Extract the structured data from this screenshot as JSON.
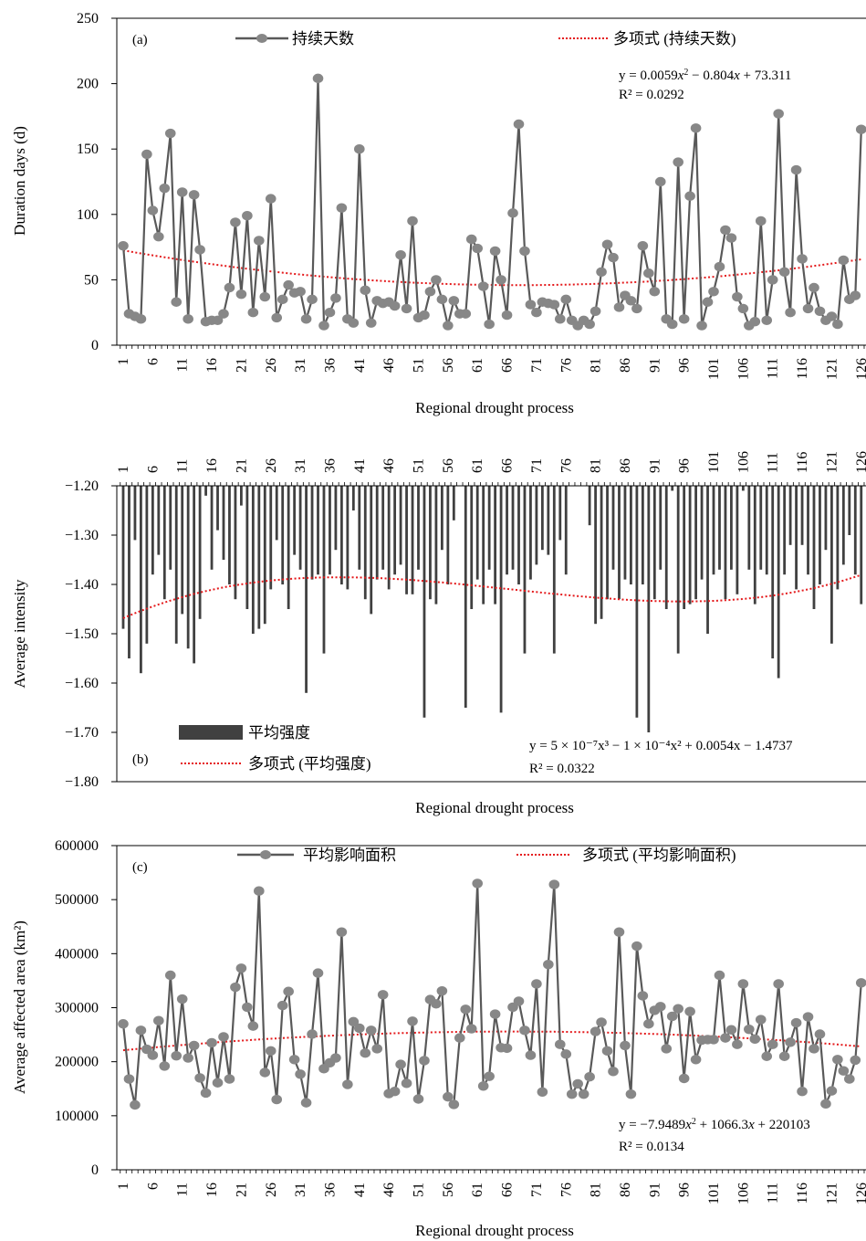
{
  "chart_data": [
    {
      "id": "a",
      "type": "line",
      "panel_label": "(a)",
      "xlabel": "Regional drought process",
      "ylabel": "Duration days (d)",
      "ylim": [
        0,
        250
      ],
      "yticks": [
        0,
        50,
        100,
        150,
        200,
        250
      ],
      "ytick_labels": [
        "0",
        "50",
        "100",
        "150",
        "200",
        "250"
      ],
      "x_first": 1,
      "x_label_every": 5,
      "grid": false,
      "legend_position": "top",
      "series": [
        {
          "name": "持续天数",
          "color": "#595959",
          "values": [
            76,
            24,
            22,
            20,
            146,
            103,
            83,
            120,
            162,
            33,
            117,
            20,
            115,
            73,
            18,
            19,
            19,
            24,
            44,
            94,
            39,
            99,
            25,
            80,
            37,
            112,
            21,
            35,
            46,
            40,
            41,
            20,
            35,
            204,
            15,
            25,
            36,
            105,
            20,
            17,
            150,
            42,
            17,
            34,
            32,
            33,
            30,
            69,
            28,
            95,
            21,
            23,
            41,
            50,
            35,
            15,
            34,
            24,
            24,
            81,
            74,
            45,
            16,
            72,
            50,
            23,
            101,
            169,
            72,
            31,
            25,
            33,
            32,
            31,
            20,
            35,
            19,
            15,
            19,
            16,
            26,
            56,
            77,
            67,
            29,
            38,
            34,
            28,
            76,
            55,
            41,
            125,
            20,
            16,
            140,
            20,
            114,
            166,
            15,
            33,
            41,
            60,
            88,
            82,
            37,
            28,
            15,
            18,
            95,
            19,
            50,
            177,
            56,
            25,
            134,
            66,
            28,
            44,
            26,
            19,
            22,
            16,
            65,
            35,
            38,
            165
          ]
        }
      ],
      "trend": {
        "name": "多项式 (持续天数)",
        "color": "#e41a1c",
        "equation_y": "y = 0.0059",
        "equation_x2": "x",
        "equation_rest": " − 0.804",
        "equation_x": "x",
        "equation_tail": " + 73.311",
        "r2": "R² = 0.0292",
        "coefficients": [
          0.0059,
          -0.804,
          73.311
        ]
      }
    },
    {
      "id": "b",
      "type": "bar",
      "panel_label": "(b)",
      "xlabel": "Regional drought process",
      "ylabel": "Average intensity",
      "ylim": [
        -1.8,
        -1.2
      ],
      "yticks": [
        -1.8,
        -1.7,
        -1.6,
        -1.5,
        -1.4,
        -1.3,
        -1.2
      ],
      "ytick_labels": [
        "−1.80",
        "−1.70",
        "−1.60",
        "−1.50",
        "−1.40",
        "−1.30",
        "−1.20"
      ],
      "x_first": 1,
      "x_label_every": 5,
      "grid": false,
      "legend_position": "bottom-left",
      "series": [
        {
          "name": "平均强度",
          "color": "#404040",
          "values": [
            -1.49,
            -1.55,
            -1.31,
            -1.58,
            -1.52,
            -1.38,
            -1.34,
            -1.43,
            -1.37,
            -1.52,
            -1.46,
            -1.53,
            -1.56,
            -1.47,
            -1.22,
            -1.37,
            -1.29,
            -1.35,
            -1.4,
            -1.43,
            -1.24,
            -1.45,
            -1.5,
            -1.49,
            -1.48,
            -1.41,
            -1.31,
            -1.4,
            -1.45,
            -1.34,
            -1.37,
            -1.62,
            -1.39,
            -1.38,
            -1.54,
            -1.38,
            -1.33,
            -1.4,
            -1.41,
            -1.25,
            -1.37,
            -1.43,
            -1.46,
            -1.39,
            -1.37,
            -1.41,
            -1.38,
            -1.36,
            -1.42,
            -1.42,
            -1.37,
            -1.67,
            -1.43,
            -1.44,
            -1.33,
            -1.4,
            -1.27,
            -1.2,
            -1.65,
            -1.45,
            -1.39,
            -1.44,
            -1.37,
            -1.44,
            -1.66,
            -1.38,
            -1.37,
            -1.4,
            -1.54,
            -1.39,
            -1.36,
            -1.33,
            -1.34,
            -1.54,
            -1.31,
            -1.38,
            -1.2,
            -1.2,
            -1.2,
            -1.28,
            -1.48,
            -1.47,
            -1.43,
            -1.37,
            -1.43,
            -1.39,
            -1.4,
            -1.67,
            -1.4,
            -1.7,
            -1.43,
            -1.37,
            -1.45,
            -1.21,
            -1.54,
            -1.45,
            -1.44,
            -1.43,
            -1.39,
            -1.5,
            -1.38,
            -1.37,
            -1.43,
            -1.37,
            -1.42,
            -1.21,
            -1.37,
            -1.44,
            -1.37,
            -1.38,
            -1.55,
            -1.59,
            -1.38,
            -1.32,
            -1.41,
            -1.32,
            -1.38,
            -1.45,
            -1.4,
            -1.33,
            -1.52,
            -1.41,
            -1.36,
            -1.3,
            -1.38,
            -1.44
          ]
        }
      ],
      "trend": {
        "name": "多项式 (平均强度)",
        "color": "#e41a1c",
        "equation_text": "y = 5 × 10⁻⁷x³ − 1 × 10⁻⁴x² + 0.0054x − 1.4737",
        "r2": "R² = 0.0322",
        "coefficients": [
          5e-07,
          -0.0001,
          0.0054,
          -1.4737
        ]
      }
    },
    {
      "id": "c",
      "type": "line",
      "panel_label": "(c)",
      "xlabel": "Regional drought process",
      "ylabel": "Average affected area (km²)",
      "ylim": [
        0,
        600000
      ],
      "yticks": [
        0,
        100000,
        200000,
        300000,
        400000,
        500000,
        600000
      ],
      "ytick_labels": [
        "0",
        "100000",
        "200000",
        "300000",
        "400000",
        "500000",
        "600000"
      ],
      "x_first": 1,
      "x_label_every": 5,
      "grid": false,
      "legend_position": "top",
      "series": [
        {
          "name": "平均影响面积",
          "color": "#595959",
          "values": [
            270000,
            168000,
            120000,
            258000,
            223000,
            212000,
            276000,
            192000,
            360000,
            211000,
            316000,
            207000,
            230000,
            170000,
            142000,
            235000,
            161000,
            246000,
            168000,
            338000,
            373000,
            301000,
            266000,
            516000,
            180000,
            220000,
            130000,
            304000,
            330000,
            204000,
            177000,
            124000,
            251000,
            364000,
            187000,
            198000,
            207000,
            440000,
            158000,
            274000,
            262000,
            216000,
            258000,
            224000,
            324000,
            141000,
            145000,
            195000,
            160000,
            275000,
            131000,
            202000,
            315000,
            307000,
            331000,
            135000,
            121000,
            244000,
            297000,
            261000,
            530000,
            155000,
            173000,
            288000,
            226000,
            225000,
            301000,
            312000,
            258000,
            212000,
            344000,
            144000,
            380000,
            528000,
            232000,
            214000,
            140000,
            159000,
            140000,
            172000,
            256000,
            273000,
            220000,
            182000,
            440000,
            230000,
            140000,
            414000,
            322000,
            270000,
            295000,
            302000,
            224000,
            284000,
            298000,
            169000,
            293000,
            204000,
            240000,
            241000,
            241000,
            360000,
            244000,
            259000,
            232000,
            344000,
            260000,
            242000,
            278000,
            210000,
            232000,
            344000,
            210000,
            236000,
            272000,
            145000,
            283000,
            224000,
            251000,
            122000,
            146000,
            204000,
            183000,
            168000,
            203000,
            346000
          ]
        }
      ],
      "trend": {
        "name": "多项式 (平均影响面积)",
        "color": "#e41a1c",
        "equation_y": "y = −7.9489",
        "equation_x2": "x",
        "equation_rest": " + 1066.3",
        "equation_x": "x",
        "equation_tail": " + 220103",
        "r2": "R² = 0.0134",
        "coefficients": [
          -7.9489,
          1066.3,
          220103
        ]
      }
    }
  ]
}
